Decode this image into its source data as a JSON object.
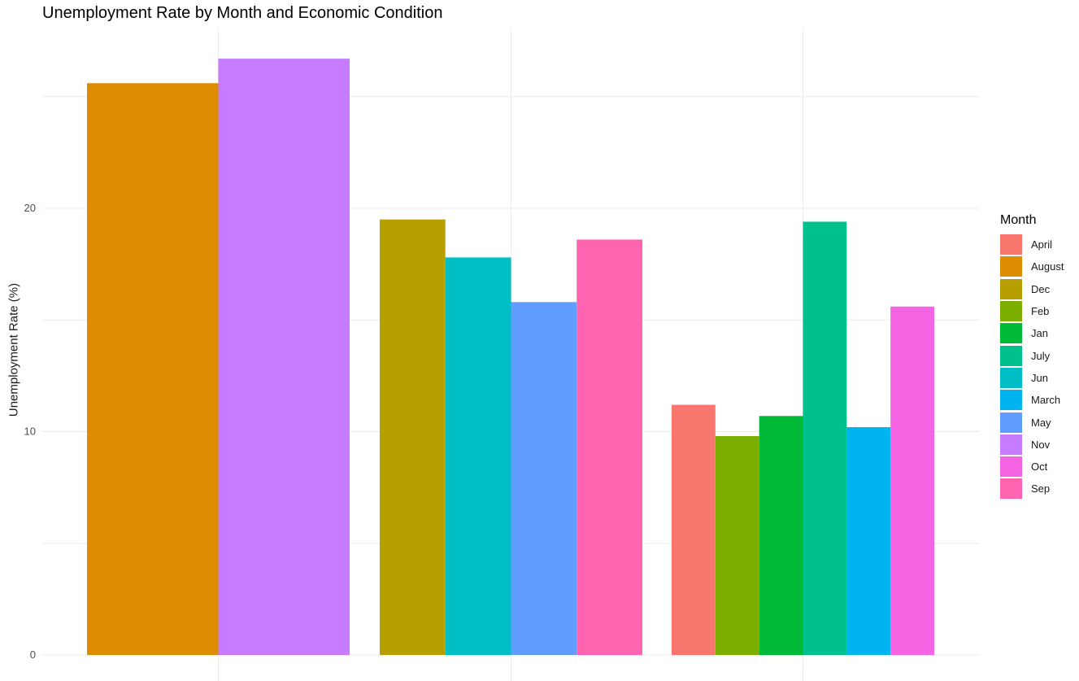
{
  "chart_data": {
    "type": "bar",
    "title": "Unemployment Rate by Month and Economic Condition",
    "xlabel": "",
    "ylabel": "Unemployment Rate (%)",
    "ylim": [
      0,
      28
    ],
    "yticks": [
      0,
      10,
      20
    ],
    "grid": true,
    "legend_title": "Month",
    "legend_position": "right",
    "legend": [
      {
        "name": "April",
        "color": "#F8766D"
      },
      {
        "name": "August",
        "color": "#DE8C00"
      },
      {
        "name": "Dec",
        "color": "#B79F00"
      },
      {
        "name": "Feb",
        "color": "#7CAE00"
      },
      {
        "name": "Jan",
        "color": "#00BA38"
      },
      {
        "name": "July",
        "color": "#00C08B"
      },
      {
        "name": "Jun",
        "color": "#00BFC4"
      },
      {
        "name": "March",
        "color": "#00B4F0"
      },
      {
        "name": "May",
        "color": "#619CFF"
      },
      {
        "name": "Nov",
        "color": "#C77CFF"
      },
      {
        "name": "Oct",
        "color": "#F564E3"
      },
      {
        "name": "Sep",
        "color": "#FF64B0"
      }
    ],
    "groups": [
      {
        "bars": [
          {
            "month": "August",
            "value": 25.6
          },
          {
            "month": "Nov",
            "value": 26.7
          }
        ]
      },
      {
        "bars": [
          {
            "month": "Dec",
            "value": 19.5
          },
          {
            "month": "Jun",
            "value": 17.8
          },
          {
            "month": "May",
            "value": 15.8
          },
          {
            "month": "Sep",
            "value": 18.6
          }
        ]
      },
      {
        "bars": [
          {
            "month": "April",
            "value": 11.2
          },
          {
            "month": "Feb",
            "value": 9.8
          },
          {
            "month": "Jan",
            "value": 10.7
          },
          {
            "month": "July",
            "value": 19.4
          },
          {
            "month": "March",
            "value": 10.2
          },
          {
            "month": "Oct",
            "value": 15.6
          }
        ]
      }
    ]
  }
}
